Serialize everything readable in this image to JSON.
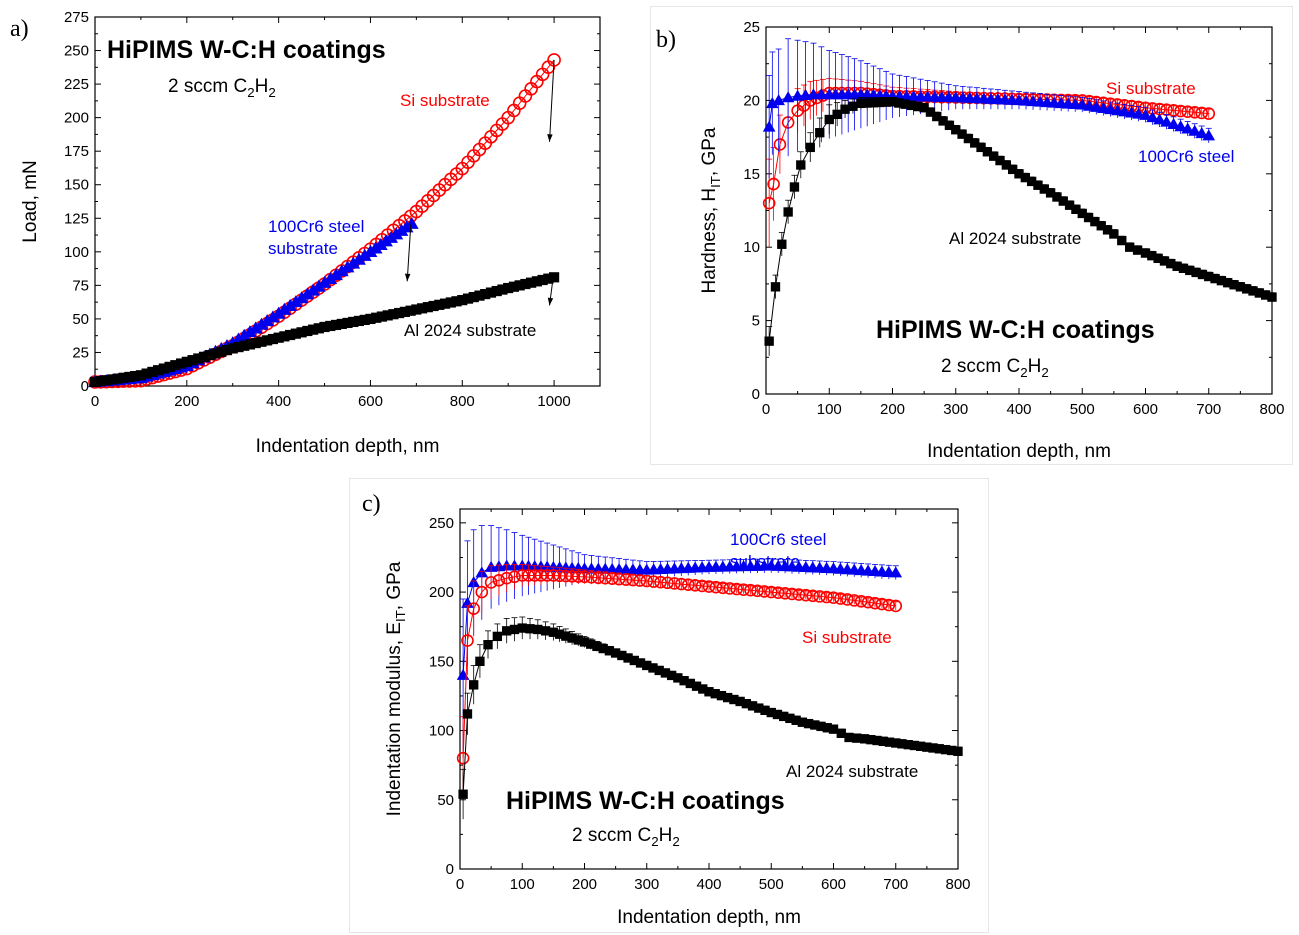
{
  "colors": {
    "si": "#ff0000",
    "steel": "#0000ee",
    "al": "#000000"
  },
  "chart_data": [
    {
      "type": "line",
      "panel_label": "a)",
      "title": "HiPIMS W-C:H coatings",
      "subtitle_parts": [
        "2 sccm C",
        "2",
        "H",
        "2"
      ],
      "xlabel": "Indentation depth, nm",
      "ylabel": "Load, mN",
      "xlim": [
        0,
        1100
      ],
      "ylim": [
        0,
        275
      ],
      "xticks": [
        0,
        200,
        400,
        600,
        800,
        1000
      ],
      "yticks": [
        0,
        25,
        50,
        75,
        100,
        125,
        150,
        175,
        200,
        225,
        250,
        275
      ],
      "annotations": [
        {
          "text": "Si substrate",
          "series": "si"
        },
        {
          "text": "100Cr6 steel",
          "series": "steel"
        },
        {
          "text": "substrate",
          "series": "steel"
        },
        {
          "text": "Al 2024 substrate",
          "series": "al"
        }
      ],
      "series": [
        {
          "key": "si",
          "marker": "circle",
          "x": [
            0,
            100,
            200,
            300,
            400,
            500,
            600,
            700,
            800,
            900,
            1000
          ],
          "y": [
            3,
            4,
            13,
            30,
            52,
            76,
            102,
            130,
            162,
            200,
            243
          ]
        },
        {
          "key": "steel",
          "marker": "triangle",
          "x": [
            0,
            100,
            200,
            300,
            400,
            500,
            600,
            690
          ],
          "y": [
            3,
            6,
            15,
            32,
            54,
            77,
            100,
            121
          ]
        },
        {
          "key": "al",
          "marker": "square",
          "x": [
            0,
            100,
            200,
            300,
            400,
            500,
            600,
            700,
            800,
            900,
            1000
          ],
          "y": [
            3,
            8,
            18,
            28,
            36,
            44,
            50,
            57,
            64,
            73,
            81
          ]
        }
      ],
      "unloading": [
        {
          "key": "si",
          "x": [
            1000,
            990
          ],
          "y": [
            243,
            182
          ]
        },
        {
          "key": "steel",
          "x": [
            688,
            680
          ],
          "y": [
            121,
            78
          ]
        },
        {
          "key": "al",
          "x": [
            998,
            990
          ],
          "y": [
            81,
            60
          ]
        }
      ]
    },
    {
      "type": "line",
      "panel_label": "b)",
      "title": "HiPIMS W-C:H coatings",
      "subtitle_parts": [
        "2 sccm C",
        "2",
        "H",
        "2"
      ],
      "xlabel": "Indentation depth, nm",
      "ylabel_parts": [
        "Hardness, H",
        "IT",
        ", GPa"
      ],
      "xlim": [
        0,
        800
      ],
      "ylim": [
        0,
        25
      ],
      "xticks": [
        0,
        100,
        200,
        300,
        400,
        500,
        600,
        700,
        800
      ],
      "yticks": [
        0,
        5,
        10,
        15,
        20,
        25
      ],
      "annotations": [
        {
          "text": "Si substrate",
          "series": "si"
        },
        {
          "text": "100Cr6 steel",
          "series": "steel"
        },
        {
          "text": "Al 2024 substrate",
          "series": "al"
        }
      ],
      "series": [
        {
          "key": "si",
          "marker": "circle",
          "x": [
            5,
            12,
            22,
            35,
            50,
            70,
            100,
            150,
            200,
            300,
            400,
            500,
            600,
            700
          ],
          "y": [
            13,
            14.3,
            17,
            18.5,
            19.3,
            20,
            20.5,
            20.5,
            20.3,
            20.2,
            20.1,
            20,
            19.5,
            19.1
          ],
          "err": [
            3,
            2.5,
            2,
            1.7,
            1.5,
            1.3,
            1,
            0.8,
            0.6,
            0.4,
            0.3,
            0.3,
            0.3,
            0.3
          ]
        },
        {
          "key": "steel",
          "marker": "triangle",
          "x": [
            5,
            10,
            20,
            35,
            50,
            75,
            100,
            150,
            200,
            300,
            400,
            500,
            600,
            700
          ],
          "y": [
            18.2,
            19.8,
            20,
            20.2,
            20.3,
            20.4,
            20.4,
            20.4,
            20.3,
            20.2,
            20,
            19.7,
            19,
            17.6
          ],
          "err": [
            3.5,
            3.5,
            3.5,
            4,
            3.8,
            3.5,
            3,
            2.3,
            1.5,
            0.8,
            0.6,
            0.5,
            0.5,
            0.5
          ]
        },
        {
          "key": "al",
          "marker": "square",
          "x": [
            5,
            15,
            25,
            35,
            45,
            55,
            70,
            85,
            100,
            125,
            150,
            200,
            250,
            300,
            350,
            400,
            450,
            500,
            550,
            575,
            600,
            650,
            700,
            750,
            800
          ],
          "y": [
            3.6,
            7.3,
            10.2,
            12.4,
            14.1,
            15.6,
            16.8,
            17.8,
            18.7,
            19.4,
            19.8,
            19.9,
            19.5,
            18,
            16.5,
            15,
            13.7,
            12.3,
            10.9,
            10,
            9.6,
            8.7,
            8,
            7.3,
            6.6
          ],
          "err": [
            1,
            0.8,
            0.8,
            0.8,
            0.8,
            0.9,
            1,
            1,
            1,
            0.6,
            0.4,
            0.3,
            0.3,
            0.3,
            0.3,
            0.3,
            0.3,
            0.3,
            0.3,
            0.3,
            0.3,
            0.3,
            0.3,
            0.3,
            0.3
          ]
        }
      ]
    },
    {
      "type": "line",
      "panel_label": "c)",
      "title": "HiPIMS W-C:H coatings",
      "subtitle_parts": [
        "2 sccm C",
        "2",
        "H",
        "2"
      ],
      "xlabel": "Indentation depth, nm",
      "ylabel_parts": [
        "Indentation modulus, E",
        "IT",
        ", GPa"
      ],
      "xlim": [
        0,
        800
      ],
      "ylim": [
        0,
        260
      ],
      "xticks": [
        0,
        100,
        200,
        300,
        400,
        500,
        600,
        700,
        800
      ],
      "yticks": [
        0,
        50,
        100,
        150,
        200,
        250
      ],
      "annotations": [
        {
          "text": "100Cr6 steel",
          "series": "steel"
        },
        {
          "text": "substrate",
          "series": "steel"
        },
        {
          "text": "Si substrate",
          "series": "si"
        },
        {
          "text": "Al 2024 substrate",
          "series": "al"
        }
      ],
      "series": [
        {
          "key": "steel",
          "marker": "triangle",
          "x": [
            5,
            12,
            22,
            35,
            50,
            75,
            100,
            150,
            200,
            300,
            400,
            500,
            600,
            700
          ],
          "y": [
            140,
            192,
            207,
            214,
            218,
            219,
            219,
            218,
            217,
            216,
            218,
            219,
            217,
            214
          ],
          "err": [
            55,
            45,
            38,
            34,
            30,
            26,
            22,
            16,
            10,
            6,
            5,
            5,
            5,
            5
          ]
        },
        {
          "key": "si",
          "marker": "circle",
          "x": [
            5,
            12,
            22,
            35,
            50,
            75,
            100,
            150,
            200,
            300,
            400,
            500,
            600,
            700
          ],
          "y": [
            80,
            165,
            188,
            200,
            207,
            210,
            212,
            212,
            211,
            208,
            204,
            200,
            196,
            190
          ],
          "err": [
            30,
            25,
            20,
            15,
            12,
            10,
            8,
            6,
            5,
            4,
            3,
            3,
            3,
            3
          ]
        },
        {
          "key": "al",
          "marker": "square",
          "x": [
            5,
            12,
            22,
            32,
            45,
            60,
            75,
            100,
            125,
            150,
            200,
            250,
            300,
            350,
            400,
            450,
            500,
            550,
            600,
            625,
            650,
            700,
            750,
            800
          ],
          "y": [
            54,
            112,
            133,
            150,
            162,
            168,
            172,
            174,
            173,
            171,
            164,
            156,
            147,
            138,
            128,
            121,
            113,
            106,
            101,
            95,
            94,
            91,
            88,
            85
          ],
          "err": [
            18,
            15,
            14,
            12,
            10,
            9,
            9,
            8,
            7,
            6,
            4,
            3,
            3,
            3,
            3,
            3,
            3,
            3,
            3,
            3,
            3,
            3,
            3,
            3
          ]
        }
      ]
    }
  ]
}
